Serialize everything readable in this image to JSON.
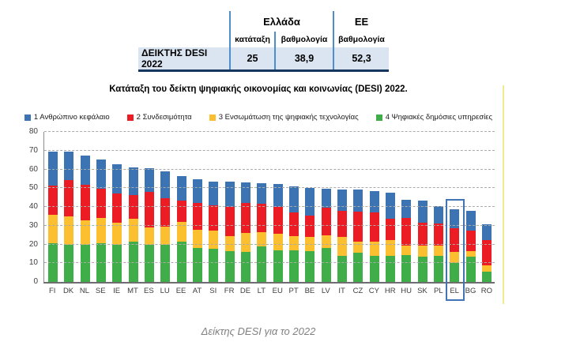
{
  "table": {
    "row_header": "ΔΕΙΚΤΗΣ DESI 2022",
    "greece_header": "Ελλάδα",
    "eu_header": "ΕΕ",
    "col_rank": "κατάταξη",
    "col_score": "βαθμολογία",
    "col_score_eu": "βαθμολογία",
    "rank_value": "25",
    "greece_score": "38,9",
    "eu_score": "52,3"
  },
  "caption": "Δείκτης DESI για το 2022",
  "colors": {
    "human_capital_blue": "#3b73b3",
    "connectivity_red": "#ec1c24",
    "digital_tech_yellow": "#fbbf2f",
    "public_services_green": "#3fae49",
    "highlight_box_blue": "#3f74b5",
    "table_separator_blue": "#4d8fcc",
    "table_row_background": "#dbe5f1",
    "table_bottom_border_navy": "#17365d",
    "side_marker_yellow": "#f2eb8d"
  },
  "chart_data": {
    "type": "bar",
    "stacked": true,
    "title": "Κατάταξη του δείκτη ψηφιακής οικονομίας και κοινωνίας (DESI) 2022.",
    "legend_position": "top",
    "grid": "dashed horizontal",
    "ylim": [
      0,
      80
    ],
    "y_ticks": [
      0,
      10,
      20,
      30,
      40,
      50,
      60,
      70,
      80
    ],
    "highlighted_category": "EL",
    "categories": [
      "FI",
      "DK",
      "NL",
      "SE",
      "IE",
      "MT",
      "ES",
      "LU",
      "EE",
      "AT",
      "SI",
      "FR",
      "DE",
      "LT",
      "EU",
      "PT",
      "BE",
      "LV",
      "IT",
      "CZ",
      "CY",
      "HR",
      "HU",
      "SK",
      "PL",
      "EL",
      "BG",
      "RO"
    ],
    "totals": [
      69.6,
      69.3,
      67.4,
      65.2,
      62.7,
      60.9,
      60.8,
      58.9,
      56.5,
      54.7,
      53.4,
      53.3,
      52.9,
      52.7,
      52.3,
      50.8,
      50.3,
      49.7,
      49.3,
      49.1,
      48.4,
      47.5,
      43.8,
      43.4,
      40.5,
      38.9,
      37.7,
      30.6
    ],
    "stack_order_bottom_to_top": [
      "4 Ψηφιακές δημόσιες υπηρεσίες",
      "3 Ενσωμάτωση της ψηφιακής τεχνολογίας",
      "2 Συνδεσιμότητα",
      "1 Ανθρώπινο κεφάλαιο"
    ],
    "series": [
      {
        "name": "1 Ανθρώπινο κεφάλαιο",
        "color": "#3b73b3",
        "values": [
          18.1,
          14.8,
          15.4,
          15.7,
          15.7,
          14.4,
          12.8,
          14.4,
          13.0,
          12.7,
          12.4,
          13.3,
          10.9,
          11.2,
          12.3,
          13.8,
          14.8,
          10.2,
          11.3,
          11.6,
          11.4,
          14.0,
          9.8,
          11.9,
          9.5,
          10.4,
          10.2,
          8.1
        ]
      },
      {
        "name": "2 Συνδεσιμότητα",
        "color": "#ec1c24",
        "values": [
          15.5,
          19.5,
          19.0,
          15.5,
          15.5,
          13.0,
          19.0,
          15.0,
          11.5,
          14.0,
          13.5,
          15.5,
          16.0,
          15.0,
          14.5,
          12.5,
          11.5,
          14.5,
          14.0,
          16.0,
          15.5,
          11.0,
          14.5,
          12.0,
          11.5,
          12.5,
          11.0,
          13.5
        ]
      },
      {
        "name": "3 Ενσωμάτωση της ψηφιακής τεχνολογίας",
        "color": "#fbbf2f",
        "values": [
          15.5,
          15.0,
          13.0,
          13.5,
          11.5,
          12.0,
          9.0,
          9.5,
          10.5,
          10.0,
          10.0,
          8.0,
          10.0,
          7.5,
          8.5,
          7.5,
          7.5,
          7.0,
          10.0,
          6.0,
          7.5,
          8.5,
          5.0,
          6.0,
          5.5,
          6.0,
          3.0,
          3.5
        ]
      },
      {
        "name": "4 Ψηφιακές δημόσιες υπηρεσίες",
        "color": "#3fae49",
        "values": [
          20.5,
          20.0,
          20.0,
          20.5,
          20.0,
          21.5,
          20.0,
          20.0,
          21.5,
          18.0,
          17.5,
          16.5,
          16.0,
          19.0,
          17.0,
          17.0,
          16.5,
          18.0,
          14.0,
          15.5,
          14.0,
          14.0,
          14.5,
          13.5,
          14.0,
          10.0,
          13.5,
          5.5
        ]
      }
    ]
  }
}
